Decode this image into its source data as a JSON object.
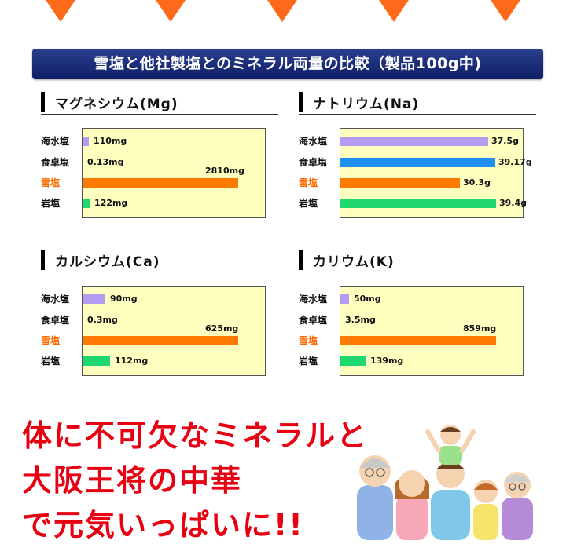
{
  "banner": {
    "title": "雪塩と他社製塩とのミネラル両量の比較（製品100g中)"
  },
  "colors": {
    "kaisui": "#b49cf2",
    "shokutaku": "#1f8ff0",
    "yukishio": "#ff7a00",
    "ganen": "#20d870",
    "highlight": "#ff6a00",
    "slogan": "#e60012"
  },
  "panels": [
    {
      "title": "マグネシウム(Mg)",
      "rows": [
        {
          "label": "海水塩",
          "value": "110mg",
          "fraction": 0.039
        },
        {
          "label": "食卓塩",
          "value": "0.13mg",
          "fraction": 0.0
        },
        {
          "label": "雪塩",
          "value": "2810mg",
          "fraction": 1.0
        },
        {
          "label": "岩塩",
          "value": "122mg",
          "fraction": 0.043
        }
      ]
    },
    {
      "title": "ナトリウム(Na)",
      "rows": [
        {
          "label": "海水塩",
          "value": "37.5g",
          "fraction": 0.951
        },
        {
          "label": "食卓塩",
          "value": "39.17g",
          "fraction": 0.994
        },
        {
          "label": "雪塩",
          "value": "30.3g",
          "fraction": 0.769
        },
        {
          "label": "岩塩",
          "value": "39.4g",
          "fraction": 1.0
        }
      ]
    },
    {
      "title": "カルシウム(Ca)",
      "rows": [
        {
          "label": "海水塩",
          "value": "90mg",
          "fraction": 0.144
        },
        {
          "label": "食卓塩",
          "value": "0.3mg",
          "fraction": 0.0
        },
        {
          "label": "雪塩",
          "value": "625mg",
          "fraction": 1.0
        },
        {
          "label": "岩塩",
          "value": "112mg",
          "fraction": 0.179
        }
      ]
    },
    {
      "title": "カリウム(K)",
      "rows": [
        {
          "label": "海水塩",
          "value": "50mg",
          "fraction": 0.058
        },
        {
          "label": "食卓塩",
          "value": "3.5mg",
          "fraction": 0.0
        },
        {
          "label": "雪塩",
          "value": "859mg",
          "fraction": 1.0
        },
        {
          "label": "岩塩",
          "value": "139mg",
          "fraction": 0.162
        }
      ]
    }
  ],
  "slogan": {
    "line1": "体に不可欠なミネラルと",
    "line2": "大阪王将の中華",
    "line3": "で元気いっぱいに!!"
  }
}
